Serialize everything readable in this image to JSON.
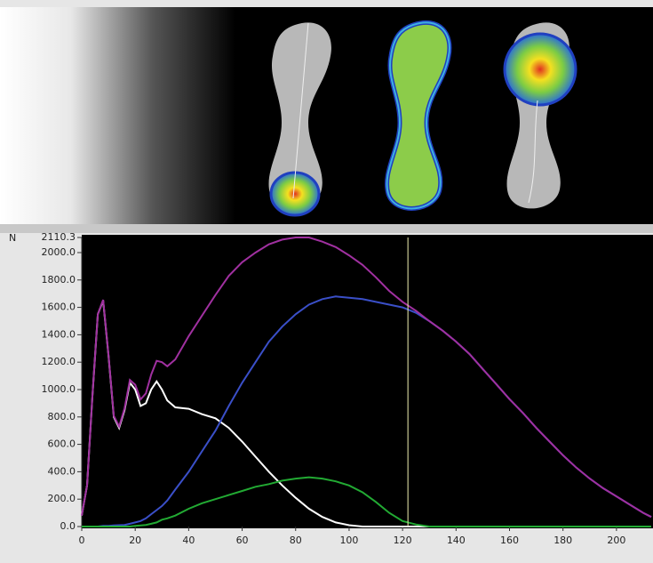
{
  "chart_data": {
    "type": "line",
    "y_label": "N",
    "x": [
      0,
      2,
      4,
      6,
      8,
      10,
      12,
      14,
      16,
      18,
      20,
      22,
      24,
      26,
      28,
      30,
      32,
      35,
      40,
      45,
      50,
      55,
      60,
      65,
      70,
      75,
      80,
      85,
      90,
      95,
      100,
      105,
      110,
      115,
      120,
      125,
      130,
      135,
      140,
      145,
      150,
      155,
      160,
      165,
      170,
      175,
      180,
      185,
      190,
      195,
      200,
      205,
      210,
      213
    ],
    "series": [
      {
        "color": "#ffffff",
        "values": [
          80,
          300,
          950,
          1550,
          1650,
          1250,
          800,
          720,
          850,
          1050,
          1000,
          880,
          900,
          1000,
          1060,
          1000,
          920,
          870,
          860,
          820,
          790,
          720,
          620,
          510,
          400,
          300,
          210,
          130,
          70,
          30,
          10,
          0,
          0,
          0,
          0,
          0,
          0,
          0,
          0,
          0,
          0,
          0,
          0,
          0,
          0,
          0,
          0,
          0,
          0,
          0,
          0,
          0,
          0,
          0
        ]
      },
      {
        "color": "#3a4fc8",
        "values": [
          0,
          0,
          0,
          0,
          5,
          5,
          8,
          10,
          12,
          20,
          30,
          40,
          60,
          90,
          120,
          150,
          190,
          270,
          400,
          550,
          700,
          880,
          1050,
          1200,
          1350,
          1460,
          1550,
          1620,
          1660,
          1680,
          1670,
          1660,
          1640,
          1620,
          1600,
          1560,
          1500,
          1430,
          1350,
          1260,
          1150,
          1040,
          930,
          830,
          720,
          620,
          520,
          430,
          350,
          280,
          220,
          160,
          100,
          70
        ]
      },
      {
        "color": "#22aa33",
        "values": [
          0,
          0,
          0,
          0,
          0,
          0,
          0,
          0,
          0,
          0,
          5,
          8,
          12,
          20,
          30,
          50,
          60,
          80,
          130,
          170,
          200,
          230,
          260,
          290,
          310,
          335,
          350,
          360,
          350,
          330,
          300,
          250,
          180,
          100,
          40,
          15,
          0,
          0,
          0,
          0,
          0,
          0,
          0,
          0,
          0,
          0,
          0,
          0,
          0,
          0,
          0,
          0,
          0,
          0
        ]
      },
      {
        "color": "#a030a0",
        "values": [
          80,
          300,
          950,
          1550,
          1655,
          1255,
          808,
          730,
          862,
          1070,
          1035,
          928,
          972,
          1110,
          1210,
          1200,
          1170,
          1220,
          1390,
          1540,
          1690,
          1830,
          1930,
          2000,
          2060,
          2095,
          2110,
          2110,
          2080,
          2040,
          1980,
          1910,
          1820,
          1720,
          1640,
          1575,
          1500,
          1430,
          1350,
          1260,
          1150,
          1040,
          930,
          830,
          720,
          620,
          520,
          430,
          350,
          280,
          220,
          160,
          100,
          70
        ]
      }
    ],
    "cursor_x": 122,
    "xlim": [
      0,
      213
    ],
    "ylim": [
      0,
      2110.3
    ],
    "xticks": [
      0,
      20,
      40,
      60,
      80,
      100,
      120,
      140,
      160,
      180,
      200
    ],
    "yticks": [
      {
        "value": 0,
        "label": "0.0"
      },
      {
        "value": 200,
        "label": "200.0"
      },
      {
        "value": 400,
        "label": "400.0"
      },
      {
        "value": 600,
        "label": "600.0"
      },
      {
        "value": 800,
        "label": "800.0"
      },
      {
        "value": 1000,
        "label": "1000.0"
      },
      {
        "value": 1200,
        "label": "1200.0"
      },
      {
        "value": 1400,
        "label": "1400.0"
      },
      {
        "value": 1600,
        "label": "1600.0"
      },
      {
        "value": 1800,
        "label": "1800.0"
      },
      {
        "value": 2000,
        "label": "2000.0"
      },
      2110.3
    ],
    "cursor_color": "#f0f0b0",
    "background": "#000000"
  }
}
